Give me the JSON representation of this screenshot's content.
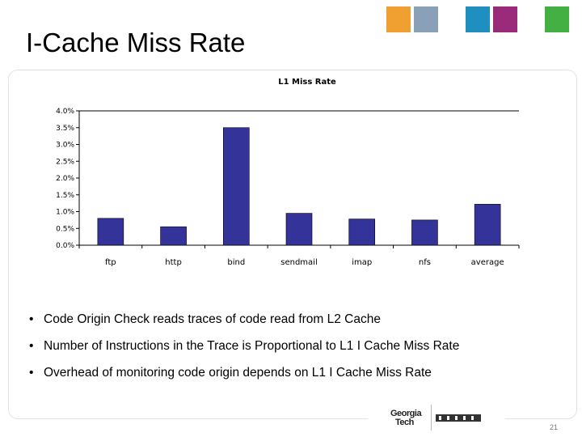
{
  "slide": {
    "title": "I-Cache Miss Rate",
    "page_number": "21"
  },
  "chart_data": {
    "type": "bar",
    "title": "L1 Miss Rate",
    "xlabel": "",
    "ylabel": "",
    "categories": [
      "ftp",
      "http",
      "bind",
      "sendmail",
      "imap",
      "nfs",
      "average"
    ],
    "values": [
      0.8,
      0.55,
      3.5,
      0.95,
      0.78,
      0.75,
      1.22
    ],
    "value_unit": "%",
    "ylim": [
      0,
      4
    ],
    "yticks": [
      0,
      0.5,
      1,
      1.5,
      2,
      2.5,
      3,
      3.5,
      4
    ],
    "ytick_labels": [
      "0.0%",
      "0.5%",
      "1.0%",
      "1.5%",
      "2.0%",
      "2.5%",
      "3.0%",
      "3.5%",
      "4.0%"
    ],
    "grid": false,
    "bar_color": "#333399"
  },
  "bullets": [
    "Code Origin Check reads traces of code read from L2 Cache",
    "Number of Instructions in the Trace is Proportional to L1 I Cache Miss Rate",
    "Overhead of monitoring code origin depends on L1 I Cache Miss Rate"
  ],
  "bullet_glyph": "•",
  "logo": {
    "line1": "Georgia",
    "line2": "Tech",
    "mark": "MARS"
  },
  "colors": {
    "thumb_1": "#f0a030",
    "thumb_2": "#8aa0b8",
    "thumb_3": "#1f8fc0",
    "thumb_4": "#9a2a7a",
    "thumb_5": "#44b044"
  }
}
